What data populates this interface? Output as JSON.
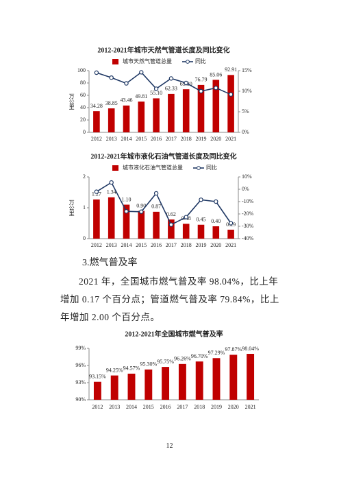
{
  "chart_data": [
    {
      "type": "bar_line",
      "title": "2012-2021年城市天然气管道长度及同比变化",
      "y_label": "万公里",
      "categories": [
        "2012",
        "2013",
        "2014",
        "2015",
        "2016",
        "2017",
        "2018",
        "2019",
        "2020",
        "2021"
      ],
      "series": [
        {
          "name": "城市天然气管道总量",
          "color": "#c00000",
          "values": [
            34.28,
            38.85,
            43.46,
            49.81,
            55.1,
            62.33,
            69.8,
            76.79,
            85.06,
            92.91
          ],
          "value_labels": [
            "34.28",
            "38.85",
            "43.46",
            "49.81",
            "55.10",
            "62.33",
            "69.80",
            "76.79",
            "85.06",
            "92.91"
          ]
        },
        {
          "name": "同比",
          "color": "#1f3864",
          "axis": "y2",
          "values": [
            14.5,
            13.3,
            11.9,
            14.6,
            10.6,
            13.1,
            12.0,
            10.0,
            10.8,
            9.2
          ]
        }
      ],
      "ylim": [
        0,
        100
      ],
      "yticks": [
        0,
        20,
        40,
        60,
        80,
        100
      ],
      "y2lim": [
        0,
        15
      ],
      "y2ticks": [
        {
          "value": 0,
          "label": "0%"
        },
        {
          "value": 5,
          "label": "5%"
        },
        {
          "value": 10,
          "label": "10%"
        },
        {
          "value": 15,
          "label": "15%"
        }
      ],
      "grid": false
    },
    {
      "type": "bar_line",
      "title": "2012-2021年城市液化石油气管道长度及同比变化",
      "y_label": "万公里",
      "categories": [
        "2012",
        "2013",
        "2014",
        "2015",
        "2016",
        "2017",
        "2018",
        "2019",
        "2020",
        "2021"
      ],
      "series": [
        {
          "name": "城市液化石油气管道总量",
          "color": "#c00000",
          "values": [
            1.27,
            1.34,
            1.1,
            0.9,
            0.87,
            0.62,
            0.48,
            0.45,
            0.4,
            0.29
          ],
          "value_labels": [
            "1.27",
            "1.34",
            "1.10",
            "0.90",
            "0.87",
            "0.62",
            "0.48",
            "0.45",
            "0.40",
            "0.29"
          ]
        },
        {
          "name": "同比",
          "color": "#1f3864",
          "axis": "y2",
          "values": [
            -2,
            5.5,
            -17.9,
            -18.2,
            -3.3,
            -28.7,
            -22.6,
            -8.5,
            -10,
            -27.5
          ]
        }
      ],
      "ylim": [
        0,
        2
      ],
      "yticks": [
        0,
        1,
        2
      ],
      "y2lim": [
        -40,
        10
      ],
      "y2ticks": [
        {
          "value": -40,
          "label": "-40%"
        },
        {
          "value": -30,
          "label": "-30%"
        },
        {
          "value": -20,
          "label": "-20%"
        },
        {
          "value": -10,
          "label": "-10%"
        },
        {
          "value": 0,
          "label": "0%"
        },
        {
          "value": 10,
          "label": "10%"
        }
      ],
      "grid": false
    },
    {
      "type": "bar",
      "title": "2012-2021年全国城市燃气普及率",
      "categories": [
        "2012",
        "2013",
        "2014",
        "2015",
        "2016",
        "2017",
        "2018",
        "2019",
        "2020",
        "2021"
      ],
      "values": [
        93.15,
        94.25,
        94.57,
        95.3,
        95.75,
        96.26,
        96.7,
        97.29,
        97.87,
        98.04
      ],
      "value_labels": [
        "93.15%",
        "94.25%",
        "94.57%",
        "95.30%",
        "95.75%",
        "96.26%",
        "96.70%",
        "97.29%",
        "97.87%",
        "98.04%"
      ],
      "color": "#c00000",
      "ylim": [
        90,
        99
      ],
      "yticks": [
        {
          "value": 90,
          "label": "90%"
        },
        {
          "value": 93,
          "label": "93%"
        },
        {
          "value": 96,
          "label": "96%"
        },
        {
          "value": 99,
          "label": "99%"
        }
      ],
      "grid": false
    }
  ],
  "document": {
    "heading": "3.燃气普及率",
    "paragraph": "2021 年，全国城市燃气普及率 98.04%，比上年增加 0.17 个百分点；管道燃气普及率 79.84%，比上年增加 2.00 个百分点。",
    "page_number": "12"
  }
}
